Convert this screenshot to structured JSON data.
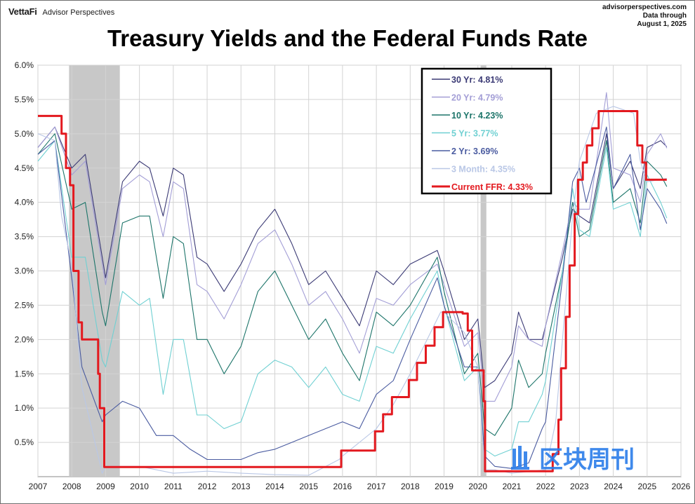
{
  "header": {
    "brand": "VettaFi",
    "brand_sub": "Advisor Perspectives",
    "source_lines": [
      "advisorperspectives.com",
      "Data through",
      "August 1, 2025"
    ]
  },
  "watermark": {
    "text": "区块周刊",
    "icon": "bar-logo-icon"
  },
  "chart_data": {
    "type": "line",
    "title": "Treasury Yields and the Federal Funds Rate",
    "xlabel": "",
    "ylabel": "",
    "xlim": [
      2007,
      2026
    ],
    "ylim": [
      0,
      6
    ],
    "x_ticks": [
      2007,
      2008,
      2009,
      2010,
      2011,
      2012,
      2013,
      2014,
      2015,
      2016,
      2017,
      2018,
      2019,
      2020,
      2021,
      2022,
      2023,
      2024,
      2025,
      2026
    ],
    "y_ticks": [
      {
        "value": 0.5,
        "label": "0.5%"
      },
      {
        "value": 1.0,
        "label": "1.0%"
      },
      {
        "value": 1.5,
        "label": "1.5%"
      },
      {
        "value": 2.0,
        "label": "2.0%"
      },
      {
        "value": 2.5,
        "label": "2.5%"
      },
      {
        "value": 3.0,
        "label": "3.0%"
      },
      {
        "value": 3.5,
        "label": "3.5%"
      },
      {
        "value": 4.0,
        "label": "4.0%"
      },
      {
        "value": 4.5,
        "label": "4.5%"
      },
      {
        "value": 5.0,
        "label": "5.0%"
      },
      {
        "value": 5.5,
        "label": "5.5%"
      },
      {
        "value": 6.0,
        "label": "6.0%"
      }
    ],
    "grid": true,
    "legend_position": "top-right",
    "recessions": [
      [
        2007.92,
        2009.42
      ],
      [
        2020.08,
        2020.25
      ]
    ],
    "series": [
      {
        "name": "30 Yr",
        "label": "30 Yr: 4.81%",
        "color": "#3b3a75",
        "x": [
          2007,
          2007.5,
          2008,
          2008.4,
          2008.9,
          2009,
          2009.5,
          2010,
          2010.3,
          2010.7,
          2011,
          2011.3,
          2011.7,
          2012,
          2012.5,
          2013,
          2013.5,
          2014,
          2014.5,
          2015,
          2015.5,
          2016,
          2016.5,
          2017,
          2017.5,
          2018,
          2018.8,
          2019,
          2019.6,
          2020,
          2020.2,
          2020.5,
          2021,
          2021.2,
          2021.5,
          2021.9,
          2022,
          2022.5,
          2022.8,
          2023,
          2023.3,
          2023.8,
          2024,
          2024.5,
          2024.8,
          2025,
          2025.4,
          2025.58
        ],
        "y": [
          4.8,
          5.1,
          4.5,
          4.7,
          3.2,
          2.9,
          4.3,
          4.6,
          4.5,
          3.8,
          4.5,
          4.4,
          3.2,
          3.1,
          2.7,
          3.1,
          3.6,
          3.9,
          3.4,
          2.8,
          3.0,
          2.6,
          2.2,
          3.0,
          2.8,
          3.1,
          3.3,
          3.0,
          2.0,
          2.3,
          1.3,
          1.4,
          1.8,
          2.4,
          2.0,
          2.0,
          2.2,
          3.2,
          3.9,
          3.8,
          3.7,
          5.0,
          4.2,
          4.6,
          4.2,
          4.8,
          4.9,
          4.81
        ]
      },
      {
        "name": "20 Yr",
        "label": "20 Yr: 4.79%",
        "color": "#a39ed6",
        "x": [
          2007,
          2007.5,
          2008,
          2008.4,
          2008.9,
          2009,
          2009.5,
          2010,
          2010.3,
          2010.7,
          2011,
          2011.3,
          2011.7,
          2012,
          2012.5,
          2013,
          2013.5,
          2014,
          2014.5,
          2015,
          2015.5,
          2016,
          2016.5,
          2017,
          2017.5,
          2018,
          2018.8,
          2019,
          2019.6,
          2020,
          2020.2,
          2020.5,
          2021,
          2021.2,
          2021.5,
          2021.9,
          2022,
          2022.5,
          2022.8,
          2023,
          2023.3,
          2023.8,
          2024,
          2024.5,
          2024.8,
          2025,
          2025.4,
          2025.58
        ],
        "y": [
          4.8,
          5.1,
          4.4,
          4.6,
          3.1,
          2.8,
          4.2,
          4.4,
          4.3,
          3.5,
          4.3,
          4.2,
          2.8,
          2.7,
          2.3,
          2.8,
          3.4,
          3.6,
          3.1,
          2.5,
          2.7,
          2.3,
          1.8,
          2.6,
          2.5,
          2.8,
          3.1,
          2.8,
          1.9,
          2.1,
          1.1,
          1.1,
          1.6,
          2.2,
          2.0,
          1.9,
          2.2,
          3.3,
          4.0,
          3.9,
          3.9,
          5.6,
          4.5,
          4.4,
          4.0,
          4.7,
          5.0,
          4.79
        ]
      },
      {
        "name": "10 Yr",
        "label": "10 Yr: 4.23%",
        "color": "#1c7469",
        "x": [
          2007,
          2007.5,
          2008,
          2008.4,
          2008.9,
          2009,
          2009.5,
          2010,
          2010.3,
          2010.7,
          2011,
          2011.3,
          2011.7,
          2012,
          2012.5,
          2013,
          2013.5,
          2014,
          2014.5,
          2015,
          2015.5,
          2016,
          2016.5,
          2017,
          2017.5,
          2018,
          2018.8,
          2019,
          2019.6,
          2020,
          2020.2,
          2020.5,
          2021,
          2021.2,
          2021.5,
          2021.9,
          2022,
          2022.5,
          2022.8,
          2023,
          2023.3,
          2023.8,
          2024,
          2024.5,
          2024.8,
          2025,
          2025.4,
          2025.58
        ],
        "y": [
          4.7,
          5.0,
          3.9,
          4.0,
          2.4,
          2.2,
          3.7,
          3.8,
          3.8,
          2.6,
          3.5,
          3.4,
          2.0,
          2.0,
          1.5,
          1.9,
          2.7,
          3.0,
          2.5,
          2.0,
          2.3,
          1.8,
          1.4,
          2.4,
          2.2,
          2.5,
          3.2,
          2.7,
          1.5,
          1.8,
          0.7,
          0.6,
          1.0,
          1.7,
          1.3,
          1.5,
          1.8,
          3.0,
          4.0,
          3.5,
          3.6,
          4.9,
          4.0,
          4.2,
          3.7,
          4.6,
          4.4,
          4.23
        ]
      },
      {
        "name": "5 Yr",
        "label": "5 Yr: 3.77%",
        "color": "#6fd0d2",
        "x": [
          2007,
          2007.5,
          2008,
          2008.4,
          2008.9,
          2009,
          2009.5,
          2010,
          2010.3,
          2010.7,
          2011,
          2011.3,
          2011.7,
          2012,
          2012.5,
          2013,
          2013.5,
          2014,
          2014.5,
          2015,
          2015.5,
          2016,
          2016.5,
          2017,
          2017.5,
          2018,
          2018.8,
          2019,
          2019.6,
          2020,
          2020.2,
          2020.5,
          2021,
          2021.2,
          2021.5,
          2021.9,
          2022,
          2022.5,
          2022.8,
          2023,
          2023.3,
          2023.8,
          2024,
          2024.5,
          2024.8,
          2025,
          2025.4,
          2025.58
        ],
        "y": [
          4.6,
          4.9,
          3.2,
          3.2,
          1.7,
          1.6,
          2.7,
          2.5,
          2.6,
          1.2,
          2.0,
          2.0,
          0.9,
          0.9,
          0.7,
          0.8,
          1.5,
          1.7,
          1.6,
          1.3,
          1.6,
          1.2,
          1.1,
          1.9,
          1.8,
          2.3,
          3.0,
          2.5,
          1.4,
          1.6,
          0.4,
          0.3,
          0.4,
          0.8,
          0.8,
          1.2,
          1.4,
          3.0,
          4.2,
          3.6,
          3.5,
          4.8,
          3.9,
          4.0,
          3.5,
          4.4,
          4.0,
          3.77
        ]
      },
      {
        "name": "2 Yr",
        "label": "2 Yr: 3.69%",
        "color": "#4a5ba0",
        "x": [
          2007,
          2007.5,
          2008,
          2008.3,
          2008.9,
          2009,
          2009.5,
          2010,
          2010.5,
          2011,
          2011.5,
          2012,
          2012.5,
          2013,
          2013.5,
          2014,
          2014.5,
          2015,
          2015.5,
          2016,
          2016.5,
          2017,
          2017.5,
          2018,
          2018.8,
          2019,
          2019.6,
          2020,
          2020.2,
          2020.5,
          2021,
          2021.5,
          2021.9,
          2022,
          2022.5,
          2022.8,
          2023,
          2023.2,
          2023.8,
          2024,
          2024.5,
          2024.8,
          2025,
          2025.4,
          2025.58
        ],
        "y": [
          4.7,
          4.9,
          2.9,
          1.6,
          0.8,
          0.9,
          1.1,
          1.0,
          0.6,
          0.6,
          0.4,
          0.25,
          0.25,
          0.25,
          0.35,
          0.4,
          0.5,
          0.6,
          0.7,
          0.8,
          0.7,
          1.2,
          1.4,
          2.0,
          2.9,
          2.5,
          1.6,
          1.6,
          0.3,
          0.15,
          0.12,
          0.2,
          0.7,
          0.8,
          2.9,
          4.3,
          4.5,
          4.0,
          5.1,
          4.2,
          4.7,
          3.6,
          4.2,
          3.9,
          3.69
        ]
      },
      {
        "name": "3 Month",
        "label": "3 Month: 4.35%",
        "color": "#b9c7e6",
        "x": [
          2007,
          2007.5,
          2007.7,
          2008,
          2008.3,
          2008.9,
          2009,
          2010,
          2011,
          2012,
          2013,
          2014,
          2015,
          2015.9,
          2016,
          2017,
          2017.5,
          2018,
          2018.9,
          2019,
          2019.6,
          2020,
          2020.2,
          2020.5,
          2021,
          2022,
          2022.3,
          2022.8,
          2023,
          2023.5,
          2024,
          2024.6,
          2024.8,
          2025,
          2025.58
        ],
        "y": [
          5.0,
          4.9,
          3.8,
          3.1,
          1.3,
          0.05,
          0.15,
          0.15,
          0.05,
          0.08,
          0.05,
          0.03,
          0.02,
          0.25,
          0.3,
          0.7,
          1.05,
          1.5,
          2.4,
          2.4,
          2.1,
          1.6,
          0.1,
          0.1,
          0.05,
          0.1,
          0.8,
          3.8,
          4.6,
          5.3,
          5.4,
          5.3,
          4.6,
          4.3,
          4.35
        ]
      },
      {
        "name": "Current FFR",
        "label": "Current FFR: 4.33%",
        "color": "#e3191f",
        "step": true,
        "x": [
          2007,
          2007.7,
          2007.83,
          2007.95,
          2008.05,
          2008.2,
          2008.3,
          2008.78,
          2008.83,
          2008.96,
          2015.96,
          2016.96,
          2017.2,
          2017.46,
          2017.96,
          2018.2,
          2018.46,
          2018.72,
          2018.97,
          2019.55,
          2019.7,
          2019.83,
          2020.17,
          2020.21,
          2022.21,
          2022.38,
          2022.46,
          2022.6,
          2022.71,
          2022.86,
          2022.96,
          2023.1,
          2023.22,
          2023.38,
          2023.57,
          2024.71,
          2024.86,
          2024.97,
          2025.58
        ],
        "y": [
          5.26,
          5.0,
          4.5,
          4.25,
          3.0,
          2.25,
          2.0,
          1.5,
          1.0,
          0.14,
          0.38,
          0.66,
          0.91,
          1.16,
          1.41,
          1.66,
          1.91,
          2.18,
          2.4,
          2.38,
          2.13,
          1.55,
          1.1,
          0.08,
          0.33,
          0.83,
          1.58,
          2.33,
          3.08,
          3.83,
          4.33,
          4.58,
          4.83,
          5.08,
          5.33,
          4.83,
          4.58,
          4.33,
          4.33
        ]
      }
    ]
  }
}
